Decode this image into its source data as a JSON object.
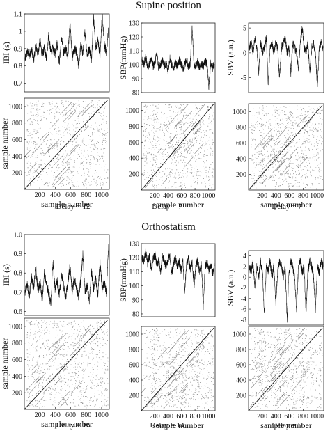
{
  "sections": [
    {
      "title": "Supine position",
      "panels": [
        {
          "delay_label": "Delay = 12"
        },
        {
          "delay_label": "Delay = 7"
        },
        {
          "delay_label": "Delay = 7"
        }
      ]
    },
    {
      "title": "Orthostatism",
      "panels": [
        {
          "delay_label": "Delay = 16"
        },
        {
          "delay_label": "Delay = 14"
        },
        {
          "delay_label": "Delay = 9"
        }
      ]
    }
  ],
  "chart_data": [
    {
      "type": "line",
      "section": "Supine position",
      "ylabel": "IBI (s)",
      "xlim": [
        0,
        1100
      ],
      "ylim": [
        0.65,
        1.1
      ],
      "yticks": [
        "0.7",
        "0.8",
        "0.9",
        "1",
        "1.1"
      ],
      "series": [
        {
          "values": [
            0.84,
            0.88,
            0.86,
            0.9,
            0.83,
            0.92,
            0.87,
            0.95,
            0.86,
            0.9,
            0.84,
            0.98,
            0.88,
            0.9,
            0.87,
            0.93,
            0.82,
            0.96,
            0.88,
            0.9,
            0.86,
            1.05,
            0.85,
            0.9,
            0.88,
            0.8,
            0.92,
            0.87,
            1.0,
            0.86,
            0.9,
            0.84,
            1.08,
            0.9,
            0.95,
            0.86,
            1.1,
            0.92,
            0.88,
            1.02
          ]
        }
      ]
    },
    {
      "type": "recurrence_plot",
      "section": "Supine position",
      "xlabel": "sample number",
      "ylabel": "sample number",
      "xticks": [
        "200",
        "400",
        "600",
        "800",
        "1000"
      ],
      "yticks": [
        "200",
        "400",
        "600",
        "800",
        "1000"
      ],
      "delay": 12
    },
    {
      "type": "line",
      "section": "Supine position",
      "ylabel": "SBP(mmHg)",
      "xlim": [
        0,
        1100
      ],
      "ylim": [
        80,
        130
      ],
      "yticks": [
        "80",
        "90",
        "100",
        "110",
        "120",
        "130"
      ],
      "series": [
        {
          "values": [
            103,
            100,
            106,
            98,
            101,
            104,
            99,
            102,
            108,
            97,
            100,
            103,
            99,
            101,
            96,
            105,
            100,
            98,
            102,
            99,
            103,
            101,
            97,
            100,
            104,
            98,
            101,
            127,
            100,
            99,
            102,
            98,
            101,
            99,
            103,
            100,
            84,
            101,
            98,
            100
          ]
        }
      ]
    },
    {
      "type": "recurrence_plot",
      "section": "Supine position",
      "xlabel": "sample number",
      "yticks": [
        "200",
        "400",
        "600",
        "800",
        "1000"
      ],
      "xticks": [
        "200",
        "400",
        "600",
        "800",
        "1000"
      ],
      "delay": 7
    },
    {
      "type": "line",
      "section": "Supine position",
      "ylabel": "SBV (a.u.)",
      "xlim": [
        0,
        1100
      ],
      "ylim": [
        -8,
        6
      ],
      "yticks": [
        "-5",
        "0",
        "5"
      ],
      "series": [
        {
          "values": [
            1,
            2,
            0,
            3,
            1,
            -4,
            2,
            0,
            1,
            3,
            -6,
            1,
            2,
            0,
            2,
            1,
            -5,
            1,
            2,
            3,
            0,
            1,
            -4,
            2,
            1,
            0,
            -3,
            2,
            5,
            1,
            0,
            2,
            -4,
            1,
            2,
            0,
            -7,
            1,
            2,
            1
          ]
        }
      ]
    },
    {
      "type": "recurrence_plot",
      "section": "Supine position",
      "xlabel": "sample number",
      "yticks": [
        "200",
        "400",
        "600",
        "800",
        "1000"
      ],
      "xticks": [
        "200",
        "400",
        "600",
        "800",
        "1000"
      ],
      "delay": 7
    },
    {
      "type": "line",
      "section": "Orthostatism",
      "ylabel": "IBI (s)",
      "xlim": [
        0,
        1100
      ],
      "ylim": [
        0.58,
        1.0
      ],
      "yticks": [
        "0.6",
        "0.7",
        "0.8",
        "0.9",
        "1.0"
      ],
      "series": [
        {
          "values": [
            0.7,
            0.74,
            0.68,
            0.78,
            0.72,
            0.83,
            0.7,
            0.76,
            0.66,
            0.8,
            0.74,
            0.7,
            0.64,
            0.86,
            0.72,
            0.76,
            0.69,
            0.8,
            0.73,
            0.67,
            0.75,
            0.84,
            0.7,
            0.78,
            0.72,
            0.68,
            0.76,
            0.9,
            0.7,
            0.73,
            0.66,
            0.81,
            0.72,
            0.77,
            0.69,
            0.86,
            0.72,
            0.75,
            0.7,
            0.95
          ]
        }
      ]
    },
    {
      "type": "recurrence_plot",
      "section": "Orthostatism",
      "xlabel": "sample number",
      "ylabel": "sample number",
      "xticks": [
        "200",
        "400",
        "600",
        "800",
        "1000"
      ],
      "yticks": [
        "200",
        "400",
        "600",
        "800",
        "1000"
      ],
      "delay": 16
    },
    {
      "type": "line",
      "section": "Orthostatism",
      "ylabel": "SBP(mmHg)",
      "xlim": [
        0,
        1100
      ],
      "ylim": [
        78,
        130
      ],
      "yticks": [
        "80",
        "90",
        "100",
        "110",
        "120",
        "130"
      ],
      "series": [
        {
          "values": [
            120,
            118,
            124,
            116,
            121,
            112,
            119,
            122,
            115,
            118,
            110,
            121,
            117,
            114,
            119,
            122,
            108,
            116,
            120,
            113,
            117,
            111,
            118,
            96,
            115,
            119,
            112,
            117,
            100,
            114,
            118,
            110,
            116,
            86,
            113,
            117,
            111,
            115,
            109,
            114
          ]
        }
      ]
    },
    {
      "type": "recurrence_plot",
      "section": "Orthostatism",
      "xlabel": "sample number",
      "yticks": [
        "200",
        "400",
        "600",
        "800",
        "1000"
      ],
      "xticks": [
        "200",
        "400",
        "600",
        "800",
        "1000"
      ],
      "delay": 14
    },
    {
      "type": "line",
      "section": "Orthostatism",
      "ylabel": "SBV (a.u.)",
      "xlim": [
        0,
        1100
      ],
      "ylim": [
        -9,
        5
      ],
      "yticks": [
        "-8",
        "-6",
        "-4",
        "-2",
        "0",
        "2",
        "4"
      ],
      "series": [
        {
          "values": [
            2,
            1,
            3,
            -2,
            2,
            0,
            3,
            1,
            -7,
            2,
            1,
            3,
            0,
            2,
            -5,
            1,
            3,
            2,
            0,
            2,
            -8,
            1,
            3,
            2,
            0,
            -6,
            2,
            3,
            1,
            2,
            -7,
            1,
            3,
            2,
            0,
            -6,
            2,
            1,
            3,
            2
          ]
        }
      ]
    },
    {
      "type": "recurrence_plot",
      "section": "Orthostatism",
      "xlabel": "sample number",
      "yticks": [
        "200",
        "400",
        "600",
        "800",
        "1000"
      ],
      "xticks": [
        "200",
        "400",
        "600",
        "800",
        "1000"
      ],
      "delay": 9
    }
  ]
}
